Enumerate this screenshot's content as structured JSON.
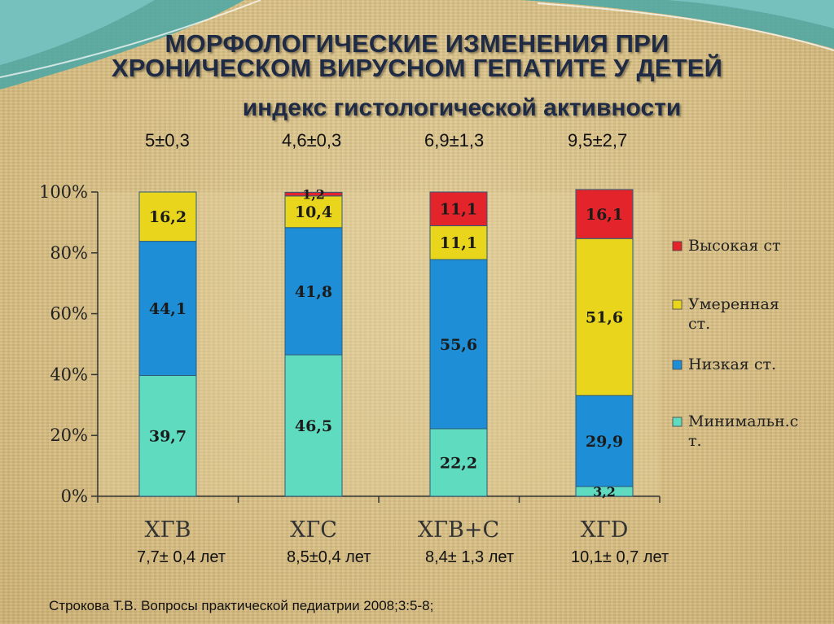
{
  "title_line1": "МОРФОЛОГИЧЕСКИЕ ИЗМЕНЕНИЯ ПРИ",
  "title_line2": "ХРОНИЧЕСКОМ ВИРУСНОМ ГЕПАТИТЕ У ДЕТЕЙ",
  "subtitle": "индекс гистологической активности",
  "activity_index": [
    "5±0,3",
    "4,6±0,3",
    "6,9±1,3",
    "9,5±2,7"
  ],
  "age_labels": [
    "7,7± 0,4 лет",
    "8,5±0,4 лет",
    "8,4± 1,3 лет",
    "10,1± 0,7 лет"
  ],
  "citation": "Строкова Т.В. Вопросы практической педиатрии 2008;3:5-8;",
  "colors": {
    "high": "#e3242b",
    "moderate": "#e8d51c",
    "low": "#1e8fd6",
    "minimal": "#5fdcc0"
  },
  "chart_data": {
    "type": "bar",
    "stacked": true,
    "categories": [
      "ХГВ",
      "ХГС",
      "ХГВ+С",
      "ХГD"
    ],
    "series": [
      {
        "name": "Минимальн.ст.",
        "color": "#5fdcc0",
        "values": [
          39.7,
          46.5,
          22.2,
          3.2
        ],
        "labels": [
          "39,7",
          "46,5",
          "22,2",
          "3,2"
        ]
      },
      {
        "name": "Низкая ст.",
        "color": "#1e8fd6",
        "values": [
          44.1,
          41.8,
          55.6,
          29.9
        ],
        "labels": [
          "44,1",
          "41,8",
          "55,6",
          "29,9"
        ]
      },
      {
        "name": "Умеренная ст.",
        "color": "#e8d51c",
        "values": [
          16.2,
          10.4,
          11.1,
          51.6
        ],
        "labels": [
          "16,2",
          "10,4",
          "11,1",
          "51,6"
        ]
      },
      {
        "name": "Высокая ст",
        "color": "#e3242b",
        "values": [
          0,
          1.2,
          11.1,
          16.1
        ],
        "labels": [
          "",
          "1,2",
          "11,1",
          "16,1"
        ]
      }
    ],
    "legend_lines": [
      [
        "Высокая ст"
      ],
      [
        "Умеренная",
        "ст."
      ],
      [
        "Низкая ст."
      ],
      [
        "Минимальн.с",
        "т."
      ]
    ],
    "yticks": [
      "0%",
      "20%",
      "40%",
      "60%",
      "80%",
      "100%"
    ],
    "ylim": [
      0,
      100
    ],
    "legend_position": "right",
    "grid": false
  }
}
